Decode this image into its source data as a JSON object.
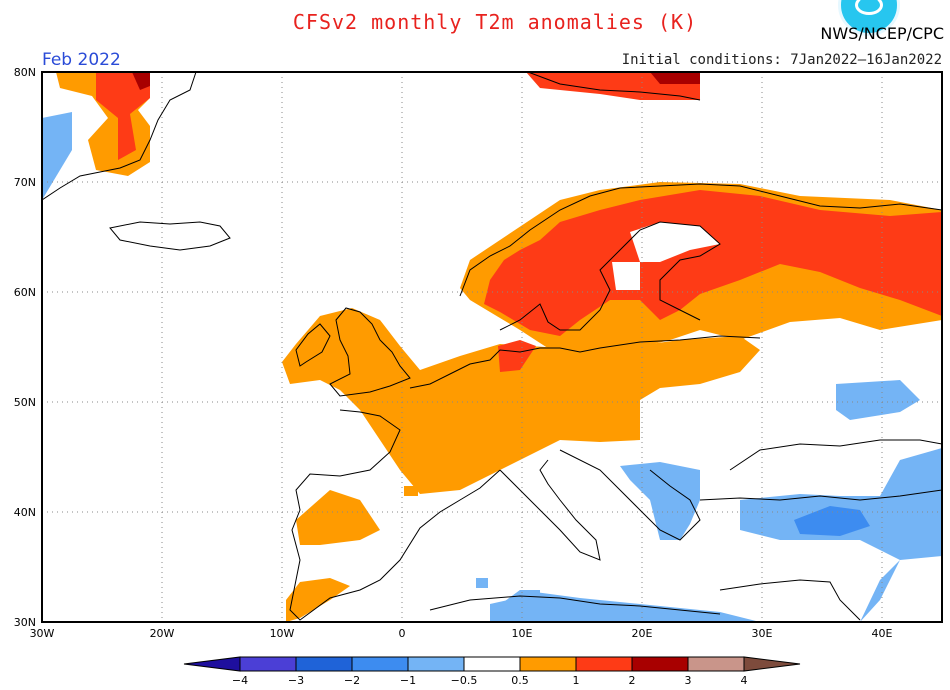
{
  "header": {
    "title": "CFSv2 monthly T2m anomalies (K)",
    "agency": "NWS/NCEP/CPC",
    "period": "Feb 2022",
    "initial_conditions": "Initial conditions: 7Jan2022–16Jan2022"
  },
  "map": {
    "lat_labels": [
      "80N",
      "70N",
      "60N",
      "50N",
      "40N",
      "30N"
    ],
    "lon_labels": [
      "30W",
      "20W",
      "10W",
      "0",
      "10E",
      "20E",
      "30E",
      "40E"
    ],
    "extent": {
      "lon_min": -30,
      "lon_max": 45,
      "lat_min": 30,
      "lat_max": 80
    }
  },
  "colorbar": {
    "labels": [
      "−4",
      "−3",
      "−2",
      "−1",
      "−0.5",
      "0.5",
      "1",
      "2",
      "3",
      "4"
    ],
    "colors": [
      "#1e0f9e",
      "#4b3fd6",
      "#1f63d8",
      "#3d8cf0",
      "#74b4f5",
      "#ffffff",
      "#ff9b00",
      "#fe3b16",
      "#a80000",
      "#c9958a",
      "#7d4b3c"
    ]
  }
}
